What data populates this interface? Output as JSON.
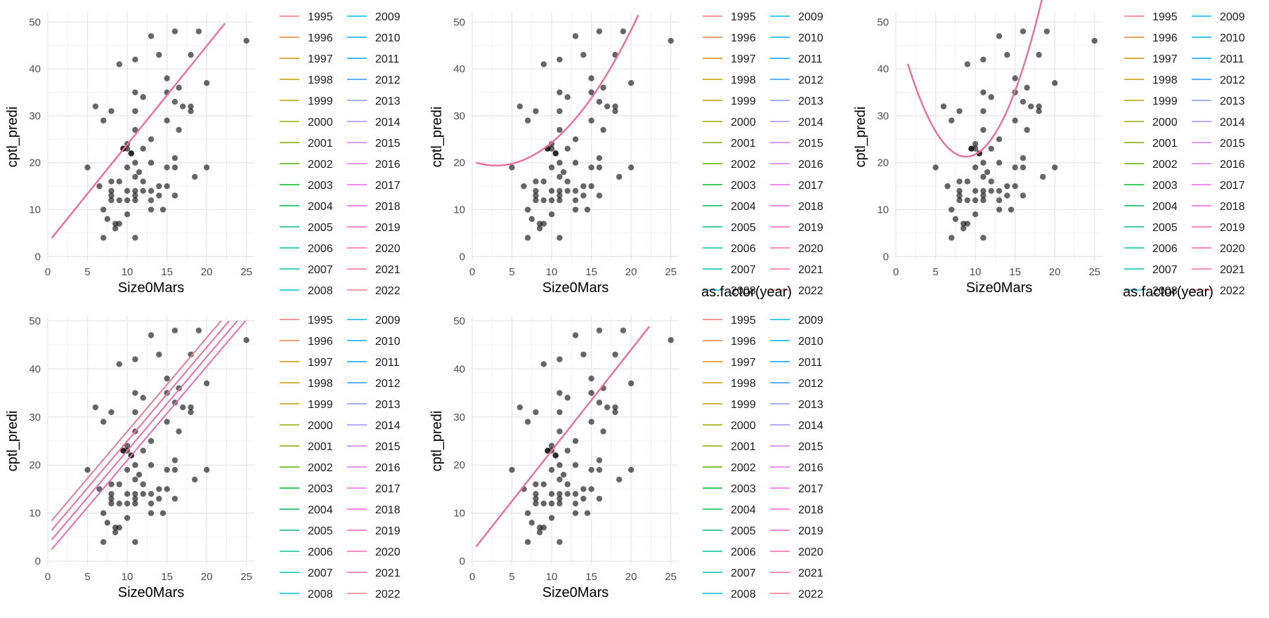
{
  "chart_data": [
    {
      "type": "scatter",
      "title": "",
      "xlabel": "Size0Mars",
      "ylabel": "cptl_predi",
      "xlim": [
        0,
        26
      ],
      "ylim": [
        -1,
        52
      ],
      "xticks": [
        0,
        5,
        10,
        15,
        20,
        25
      ],
      "yticks": [
        0,
        10,
        20,
        30,
        40,
        50
      ],
      "grid": true,
      "fit": {
        "kind": "linear",
        "intercept": 2.9,
        "slope": 2.1,
        "xrange": [
          0.5,
          22.3
        ]
      },
      "legend": {
        "title": "",
        "position": "right"
      }
    },
    {
      "type": "scatter",
      "title": "",
      "xlabel": "Size0Mars",
      "ylabel": "cptl_predi",
      "xlim": [
        0,
        26
      ],
      "ylim": [
        -1,
        52
      ],
      "xticks": [
        0,
        5,
        10,
        15,
        20,
        25
      ],
      "yticks": [
        0,
        10,
        20,
        30,
        40,
        50
      ],
      "grid": true,
      "fit": {
        "kind": "quadratic",
        "a": 0.1,
        "b": -0.6,
        "c": 20.3,
        "xrange": [
          0.5,
          20.9
        ]
      },
      "legend": {
        "title": "as.factor(year)",
        "position": "right"
      }
    },
    {
      "type": "scatter",
      "title": "",
      "xlabel": "Size0Mars",
      "ylabel": "cptl_predi",
      "xlim": [
        0,
        26
      ],
      "ylim": [
        -1,
        52
      ],
      "xticks": [
        0,
        5,
        10,
        15,
        20,
        25
      ],
      "yticks": [
        0,
        10,
        20,
        30,
        40,
        50
      ],
      "grid": true,
      "fit": {
        "kind": "quadratic",
        "a": 0.368,
        "b": -6.5,
        "c": 50.0,
        "xrange": [
          1.5,
          20.3
        ]
      },
      "legend": {
        "title": "as.factor(year)",
        "position": "right"
      }
    },
    {
      "type": "scatter",
      "title": "",
      "xlabel": "Size0Mars",
      "ylabel": "cptl_predi",
      "xlim": [
        0,
        26
      ],
      "ylim": [
        -1,
        51
      ],
      "xticks": [
        0,
        5,
        10,
        15,
        20,
        25
      ],
      "yticks": [
        0,
        10,
        20,
        30,
        40,
        50
      ],
      "grid": true,
      "fit": {
        "kind": "per-year-linear",
        "slope": 1.95,
        "intercept_min": 1.5,
        "intercept_max": 9.2,
        "xmin": 0.5,
        "ymax": 50
      },
      "legend": {
        "title": "",
        "position": "right"
      }
    },
    {
      "type": "scatter",
      "title": "",
      "xlabel": "Size0Mars",
      "ylabel": "cptl_predi",
      "xlim": [
        0,
        26
      ],
      "ylim": [
        -1,
        51
      ],
      "xticks": [
        0,
        5,
        10,
        15,
        20,
        25
      ],
      "yticks": [
        0,
        10,
        20,
        30,
        40,
        50
      ],
      "grid": true,
      "fit": {
        "kind": "linear",
        "intercept": 2.0,
        "slope": 2.1,
        "xrange": [
          0.5,
          22.3
        ]
      },
      "legend": {
        "title": "",
        "position": "right"
      }
    }
  ],
  "points": [
    [
      5,
      19
    ],
    [
      6,
      32
    ],
    [
      6.5,
      15
    ],
    [
      7,
      29
    ],
    [
      7,
      10
    ],
    [
      7,
      4
    ],
    [
      7.5,
      8
    ],
    [
      8,
      31
    ],
    [
      8,
      16
    ],
    [
      8,
      14
    ],
    [
      8,
      13
    ],
    [
      8,
      12
    ],
    [
      8.5,
      6
    ],
    [
      8.5,
      7
    ],
    [
      9,
      41
    ],
    [
      9,
      16
    ],
    [
      9,
      12
    ],
    [
      9,
      7
    ],
    [
      9.5,
      23
    ],
    [
      10,
      24
    ],
    [
      10,
      23
    ],
    [
      10,
      14
    ],
    [
      10,
      12
    ],
    [
      10,
      9
    ],
    [
      10.5,
      22
    ],
    [
      10,
      19
    ],
    [
      11,
      42
    ],
    [
      11,
      35
    ],
    [
      11,
      31
    ],
    [
      11,
      27
    ],
    [
      11,
      20
    ],
    [
      11,
      17
    ],
    [
      11,
      14
    ],
    [
      11,
      13
    ],
    [
      11,
      12
    ],
    [
      11,
      4
    ],
    [
      11.5,
      18
    ],
    [
      12,
      34
    ],
    [
      12,
      23
    ],
    [
      12,
      16
    ],
    [
      13,
      47
    ],
    [
      13,
      25
    ],
    [
      13,
      20
    ],
    [
      13,
      12
    ],
    [
      13,
      10
    ],
    [
      14,
      43
    ],
    [
      14,
      15
    ],
    [
      14,
      13
    ],
    [
      14.5,
      10
    ],
    [
      15,
      38
    ],
    [
      15,
      35
    ],
    [
      15,
      29
    ],
    [
      15,
      19
    ],
    [
      15,
      15
    ],
    [
      16,
      48
    ],
    [
      16,
      33
    ],
    [
      16,
      21
    ],
    [
      16,
      19
    ],
    [
      16,
      13
    ],
    [
      16.5,
      36
    ],
    [
      16.5,
      27
    ],
    [
      17,
      32
    ],
    [
      18,
      43
    ],
    [
      18,
      32
    ],
    [
      18,
      31
    ],
    [
      18.5,
      17
    ],
    [
      19,
      48
    ],
    [
      20,
      37
    ],
    [
      20,
      19
    ],
    [
      25,
      46
    ],
    [
      9.5,
      23
    ],
    [
      10.5,
      22
    ],
    [
      12,
      14
    ],
    [
      13,
      14
    ]
  ],
  "years": [
    "1995",
    "1996",
    "1997",
    "1998",
    "1999",
    "2000",
    "2001",
    "2002",
    "2003",
    "2004",
    "2005",
    "2006",
    "2007",
    "2008",
    "2009",
    "2010",
    "2011",
    "2012",
    "2013",
    "2014",
    "2015",
    "2016",
    "2017",
    "2018",
    "2019",
    "2020",
    "2021",
    "2022"
  ],
  "year_colors": [
    "#F8766D",
    "#EC823C",
    "#DD8D00",
    "#CA9700",
    "#B4A000",
    "#9BA800",
    "#7CAE00",
    "#53B400",
    "#00B81F",
    "#00BC55",
    "#00BF78",
    "#00C098",
    "#00C0B5",
    "#00BDD0",
    "#00B8E5",
    "#00B0F6",
    "#00A5FF",
    "#2A95FF",
    "#7F96FF",
    "#A58AFF",
    "#C77CFF",
    "#DE72F5",
    "#EF67EB",
    "#FB61D7",
    "#FF62BC",
    "#FF67A4",
    "#FF6C90",
    "#F47B86"
  ],
  "fit_color": "#EC6E96"
}
